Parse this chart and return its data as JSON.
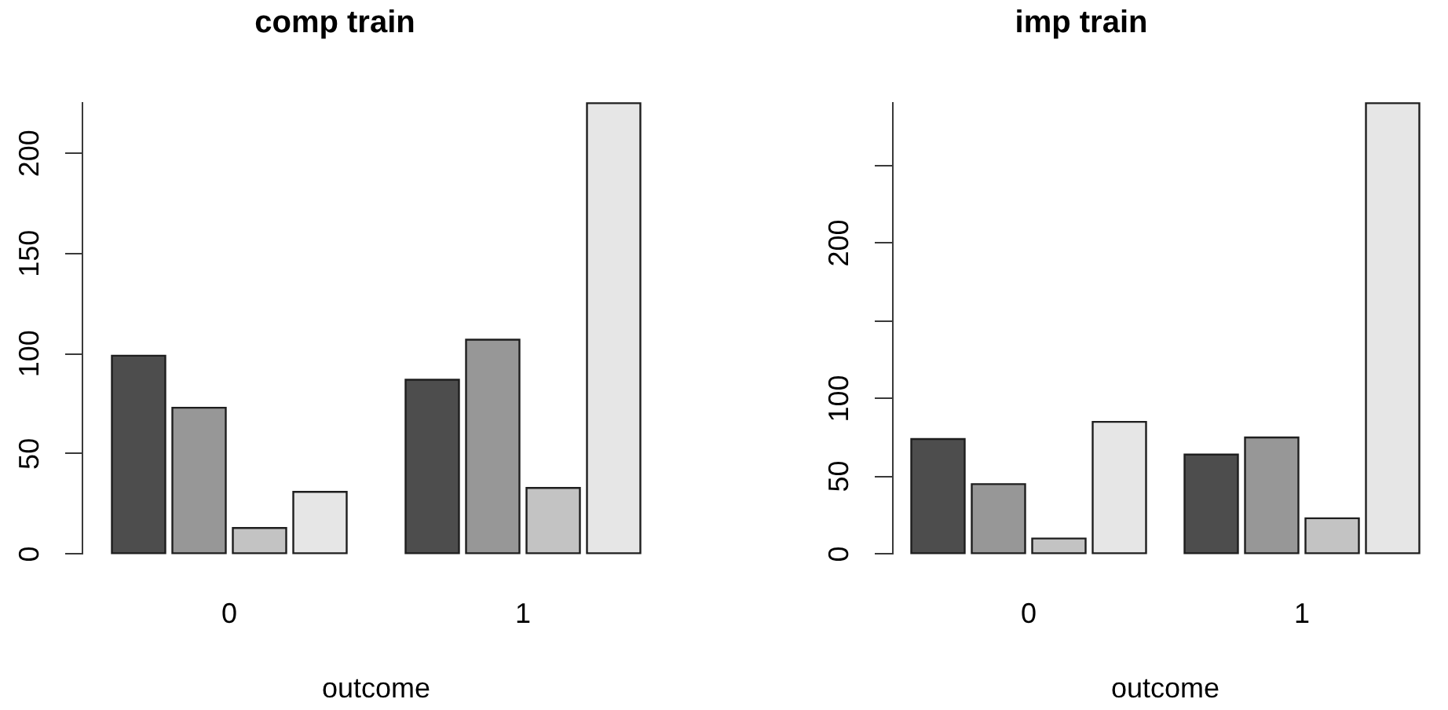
{
  "chart_data": [
    {
      "type": "bar",
      "title": "comp train",
      "xlabel": "outcome",
      "categories": [
        "0",
        "1"
      ],
      "series": [
        {
          "color": "#4d4d4d",
          "values": [
            99,
            87
          ]
        },
        {
          "color": "#979797",
          "values": [
            73,
            107
          ]
        },
        {
          "color": "#c3c3c3",
          "values": [
            13,
            33
          ]
        },
        {
          "color": "#e6e6e6",
          "values": [
            31,
            225
          ]
        }
      ],
      "ylim": [
        0,
        225
      ],
      "yticks": [
        0,
        50,
        100,
        150,
        200
      ]
    },
    {
      "type": "bar",
      "title": "imp train",
      "xlabel": "outcome",
      "categories": [
        "0",
        "1"
      ],
      "series": [
        {
          "color": "#4d4d4d",
          "values": [
            74,
            64
          ]
        },
        {
          "color": "#979797",
          "values": [
            45,
            75
          ]
        },
        {
          "color": "#c3c3c3",
          "values": [
            10,
            23
          ]
        },
        {
          "color": "#e6e6e6",
          "values": [
            85,
            290
          ]
        }
      ],
      "ylim": [
        0,
        290
      ],
      "yticks": [
        0,
        50,
        100,
        {
          "value": 150,
          "label": null
        },
        200,
        {
          "value": 250,
          "label": null
        }
      ]
    }
  ]
}
